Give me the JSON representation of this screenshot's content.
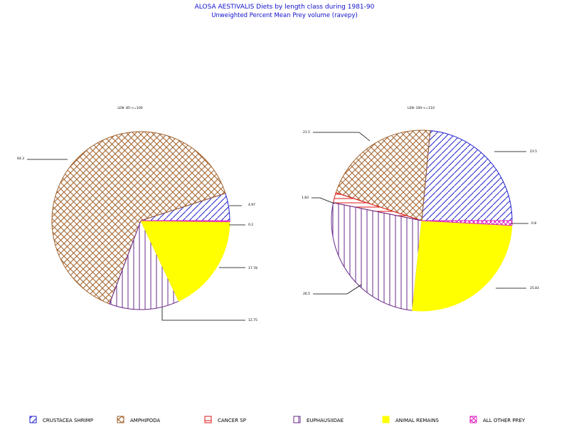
{
  "chart_data": {
    "type": "pie",
    "title": "ALOSA AESTIVALIS Diets by length class during 1981-90",
    "subtitle": "Unweighted Percent Mean Prey volume (ravepy)",
    "legend_position": "bottom",
    "categories": [
      "CRUSTACEA SHRIMP",
      "AMPHIPODA",
      "CANCER SP",
      "EUPHAUSIIDAE",
      "ANIMAL REMAINS",
      "ALL OTHER PREY"
    ],
    "colors": {
      "CRUSTACEA SHRIMP": "#2020cc",
      "AMPHIPODA": "#a0602a",
      "CANCER SP": "#e01818",
      "EUPHAUSIIDAE": "#6a2a8a",
      "ANIMAL REMAINS": "#ffff00",
      "ALL OTHER PREY": "#e020c0"
    },
    "pies": [
      {
        "label": "LEN: 85-<=100",
        "values": [
          4.97,
          64.3,
          0.0,
          12.75,
          17.78,
          0.2
        ],
        "value_labels": [
          "4.97",
          "64.3",
          "",
          "12.75",
          "17.78",
          "0.2"
        ]
      },
      {
        "label": "LEN: 100-<=110",
        "values": [
          23.5,
          21.5,
          1.83,
          26.5,
          25.83,
          0.84
        ],
        "value_labels": [
          "23.5",
          "21.5",
          "1.83",
          "26.5",
          "25.83",
          "0.8"
        ]
      }
    ]
  }
}
